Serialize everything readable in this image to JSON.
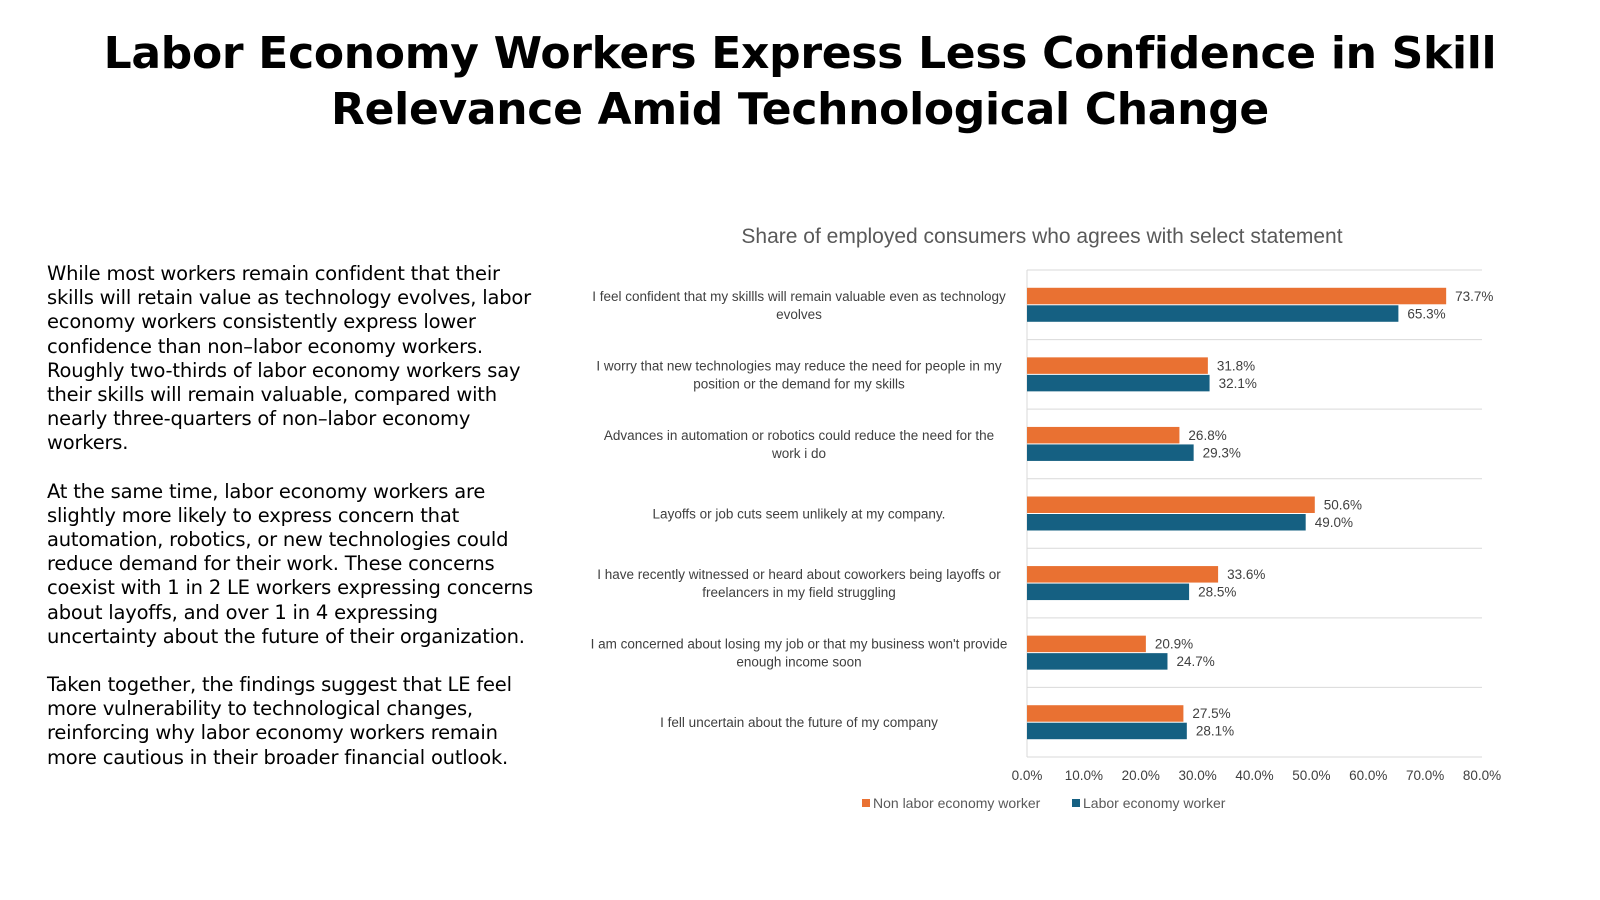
{
  "title": "Labor Economy Workers Express Less Confidence in Skill Relevance Amid Technological Change",
  "paragraphs": [
    "While most workers remain confident that their skills will retain value as technology evolves, labor economy workers consistently express lower confidence than non–labor economy workers. Roughly two-thirds of labor economy workers say their skills will remain valuable, compared with nearly three-quarters of non–labor economy workers.",
    "At the same time, labor economy workers are slightly more likely to express concern that automation, robotics, or new technologies could reduce demand for their work. These concerns coexist with 1 in 2 LE workers expressing concerns about layoffs, and over 1 in 4 expressing uncertainty about the future of their organization.",
    "Taken together, the findings suggest that LE feel more vulnerability to technological changes, reinforcing why labor economy workers remain more cautious in their broader financial outlook."
  ],
  "colors": {
    "non_labor": "#E97132",
    "labor": "#156082",
    "grid": "#D9D9D9"
  },
  "chart_data": {
    "type": "bar",
    "orientation": "horizontal",
    "title": "Share of employed consumers who agrees with select statement",
    "categories": [
      [
        "I feel confident that my skillls will remain valuable even as technology",
        "evolves"
      ],
      [
        "I worry that new technologies may reduce the need for people in my",
        "position or the demand for my skills"
      ],
      [
        "Advances in automation or robotics could reduce the need for the",
        "work i do"
      ],
      [
        "Layoffs or job cuts seem unlikely at my company."
      ],
      [
        "I have recently witnessed or heard about coworkers being layoffs or",
        "freelancers in my field struggling"
      ],
      [
        "I am concerned about losing my job or that my business won't provide",
        "enough income soon"
      ],
      [
        "I fell uncertain about the future of my company"
      ]
    ],
    "series": [
      {
        "name": "Non labor economy worker",
        "values": [
          73.7,
          31.8,
          26.8,
          50.6,
          33.6,
          20.9,
          27.5
        ],
        "labels": [
          "73.7%",
          "31.8%",
          "26.8%",
          "50.6%",
          "33.6%",
          "20.9%",
          "27.5%"
        ]
      },
      {
        "name": "Labor economy worker",
        "values": [
          65.3,
          32.1,
          29.3,
          49.0,
          28.5,
          24.7,
          28.1
        ],
        "labels": [
          "65.3%",
          "32.1%",
          "29.3%",
          "49.0%",
          "28.5%",
          "24.7%",
          "28.1%"
        ]
      }
    ],
    "xlim": [
      0,
      80
    ],
    "xticks": [
      "0.0%",
      "10.0%",
      "20.0%",
      "30.0%",
      "40.0%",
      "50.0%",
      "60.0%",
      "70.0%",
      "80.0%"
    ],
    "legend_position": "bottom-center",
    "grid": true
  }
}
